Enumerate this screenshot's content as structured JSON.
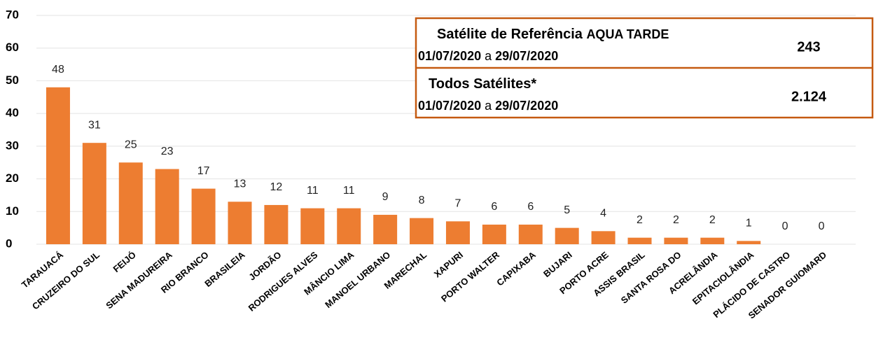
{
  "chart_data": {
    "type": "bar",
    "categories": [
      "TARAUACÁ",
      "CRUZEIRO DO SUL",
      "FEIJÓ",
      "SENA MADUREIRA",
      "RIO BRANCO",
      "BRASILEIA",
      "JORDÃO",
      "RODRIGUES ALVES",
      "MÂNCIO LIMA",
      "MANOEL URBANO",
      "MARECHAL",
      "XAPURI",
      "PORTO WALTER",
      "CAPIXABA",
      "BUJARI",
      "PORTO ACRE",
      "ASSIS BRASIL",
      "SANTA ROSA DO",
      "ACRELÂNDIA",
      "EPITACIOLÂNDIA",
      "PLÁCIDO DE CASTRO",
      "SENADOR GUIOMARD"
    ],
    "values": [
      48,
      31,
      25,
      23,
      17,
      13,
      12,
      11,
      11,
      9,
      8,
      7,
      6,
      6,
      5,
      4,
      2,
      2,
      2,
      1,
      0,
      0
    ],
    "color": "#ed7d31",
    "ylim": [
      0,
      70
    ],
    "yticks": [
      0,
      10,
      20,
      30,
      40,
      50,
      60,
      70
    ],
    "grid": true,
    "info_box": [
      {
        "title": "Satélite de Referência",
        "title_suffix": "AQUA TARDE",
        "period": [
          "01/07/2020",
          "a",
          "29/07/2020"
        ],
        "total": 243
      },
      {
        "title": "Todos Satélites*",
        "period": [
          "01/07/2020",
          "a",
          "29/07/2020"
        ],
        "total": {
          "value": 2124,
          "label": "2.124"
        }
      }
    ]
  }
}
